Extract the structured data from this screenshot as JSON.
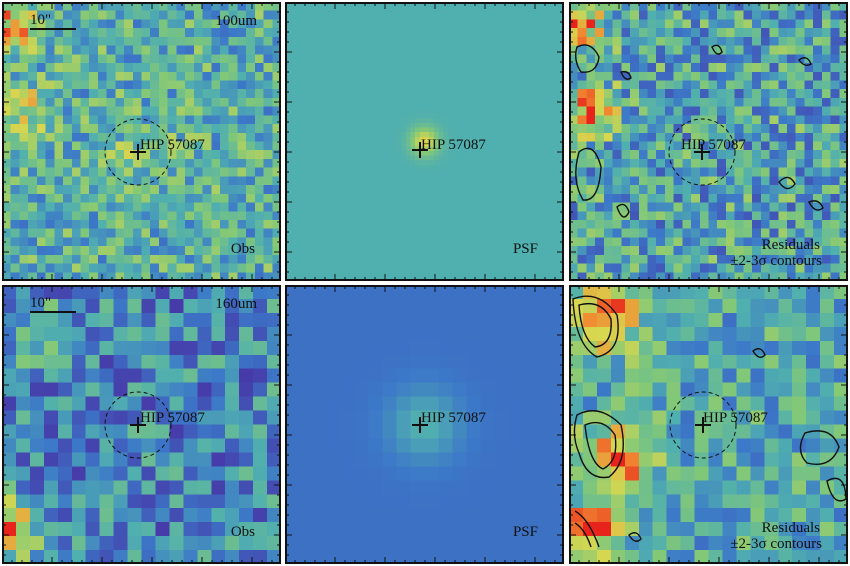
{
  "target_name": "HIP 57087",
  "scale_bar_label": "10\"",
  "rows": [
    {
      "band": "100um",
      "panels": [
        {
          "kind": "obs",
          "label": "Obs",
          "colormap_shift": 0.0
        },
        {
          "kind": "psf",
          "label": "PSF"
        },
        {
          "kind": "residuals",
          "label_line1": "Residuals",
          "label_line2": "±2-3σ contours"
        }
      ],
      "axis_ticks": [
        "10",
        "20",
        "30"
      ]
    },
    {
      "band": "160um",
      "panels": [
        {
          "kind": "obs",
          "label": "Obs"
        },
        {
          "kind": "psf",
          "label": "PSF"
        },
        {
          "kind": "residuals",
          "label_line1": "Residuals",
          "label_line2": "±2-3σ contours"
        }
      ],
      "axis_ticks": [
        "10",
        "15",
        "20"
      ]
    }
  ],
  "colors": {
    "frame": "#111111",
    "psf_bg_100": "#5fb3a0",
    "psf_bg_160": "#4169c0",
    "residual_peak": "#e8231c"
  }
}
